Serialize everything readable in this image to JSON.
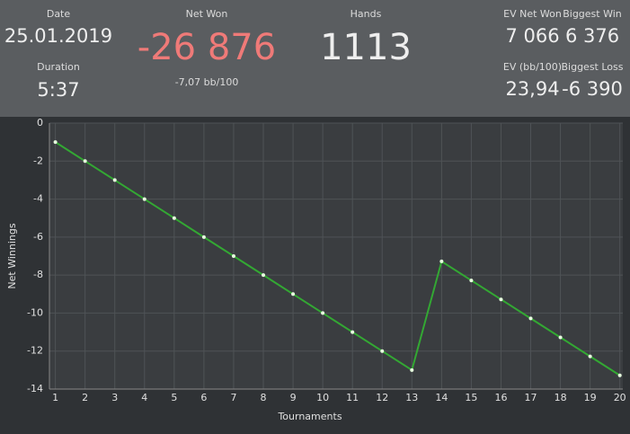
{
  "header": {
    "date_label": "Date",
    "date": "25.01.2019",
    "duration_label": "Duration",
    "duration": "5:37",
    "net_won_label": "Net Won",
    "net_won": "-26 876",
    "bb_per_100": "-7,07 bb/100",
    "hands_label": "Hands",
    "hands": "1113",
    "ev_net_won_label": "EV Net Won",
    "ev_net_won": "7 066",
    "biggest_win_label": "Biggest Win",
    "biggest_win": "6 376",
    "ev_bb_label": "EV (bb/100)",
    "ev_bb": "23,94",
    "biggest_loss_label": "Biggest Loss",
    "biggest_loss": "-6 390"
  },
  "chart_data": {
    "type": "line",
    "x_label": "Tournaments",
    "y_label": "Net Winnings",
    "x": [
      1,
      2,
      3,
      4,
      5,
      6,
      7,
      8,
      9,
      10,
      11,
      12,
      13,
      14,
      15,
      16,
      17,
      18,
      19,
      20
    ],
    "values": [
      -1,
      -2,
      -3,
      -4,
      -5,
      -6,
      -7,
      -8,
      -9,
      -10,
      -11,
      -12,
      -13,
      -7.28,
      -8.28,
      -9.28,
      -10.28,
      -11.28,
      -12.28,
      -13.28
    ],
    "color": "#33a833",
    "xlim": [
      0.8,
      20.1
    ],
    "ylim": [
      -14,
      0
    ],
    "xticks": [
      1,
      2,
      3,
      4,
      5,
      6,
      7,
      8,
      9,
      10,
      11,
      12,
      13,
      14,
      15,
      16,
      17,
      18,
      19,
      20
    ],
    "yticks": [
      0,
      -2,
      -4,
      -6,
      -8,
      -10,
      -12,
      -14
    ],
    "grid": true
  }
}
